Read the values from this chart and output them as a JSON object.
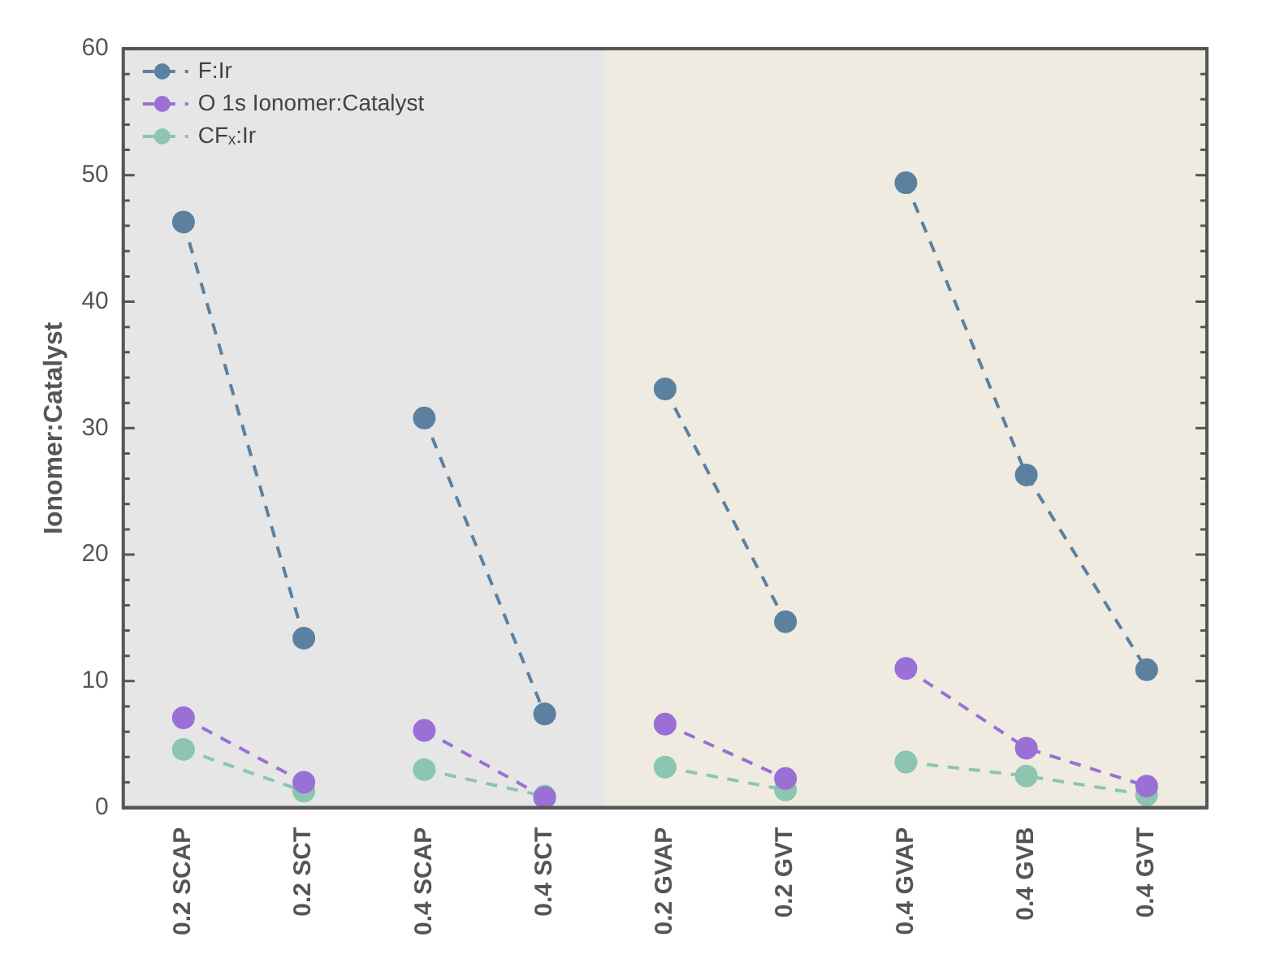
{
  "chart_data": {
    "type": "line",
    "ylabel": "Ionomer:Catalyst",
    "categories": [
      "0.2 SCAP",
      "0.2 SCT",
      "0.4 SCAP",
      "0.4 SCT",
      "0.2 GVAP",
      "0.2 GVT",
      "0.4 GVAP",
      "0.4 GVB",
      "0.4 GVT"
    ],
    "series": [
      {
        "name": "F:Ir",
        "color": "#5b80a0",
        "values": [
          46.3,
          13.4,
          null,
          null,
          null,
          null,
          null,
          null,
          null
        ]
      },
      {
        "name": "O 1s Ionomer:Catalyst",
        "color": "#9a6fd6",
        "values": [
          7.1,
          2.0,
          null,
          null,
          null,
          null,
          null,
          null,
          null
        ]
      },
      {
        "name": "CFₓ:Ir",
        "color": "#8cc5b0",
        "values": [
          4.6,
          1.3,
          null,
          null,
          null,
          null,
          null,
          null,
          null
        ]
      },
      {
        "color": "#5b80a0",
        "values": [
          null,
          null,
          30.8,
          7.4,
          null,
          null,
          null,
          null,
          null
        ]
      },
      {
        "color": "#9a6fd6",
        "values": [
          null,
          null,
          6.1,
          0.8,
          null,
          null,
          null,
          null,
          null
        ]
      },
      {
        "color": "#8cc5b0",
        "values": [
          null,
          null,
          3.0,
          0.9,
          null,
          null,
          null,
          null,
          null
        ]
      },
      {
        "color": "#5b80a0",
        "values": [
          null,
          null,
          null,
          null,
          33.1,
          14.7,
          null,
          null,
          null
        ]
      },
      {
        "color": "#9a6fd6",
        "values": [
          null,
          null,
          null,
          null,
          6.6,
          2.3,
          null,
          null,
          null
        ]
      },
      {
        "color": "#8cc5b0",
        "values": [
          null,
          null,
          null,
          null,
          3.2,
          1.4,
          null,
          null,
          null
        ]
      },
      {
        "color": "#5b80a0",
        "values": [
          null,
          null,
          null,
          null,
          null,
          null,
          49.4,
          26.3,
          10.9
        ]
      },
      {
        "color": "#9a6fd6",
        "values": [
          null,
          null,
          null,
          null,
          null,
          null,
          11.0,
          4.7,
          1.7
        ]
      },
      {
        "color": "#8cc5b0",
        "values": [
          null,
          null,
          null,
          null,
          null,
          null,
          3.6,
          2.5,
          1.0
        ]
      }
    ],
    "bands": [
      {
        "axis": "x",
        "from": "0.2 SCAP",
        "to": "0.4 SCT",
        "color": "#e6e6e6"
      },
      {
        "axis": "x",
        "from": "0.2 GVAP",
        "to": "0.4 GVT",
        "color": "#efebe0"
      }
    ],
    "ylim": [
      0,
      60
    ],
    "yticks": [
      0,
      10,
      20,
      30,
      40,
      50,
      60
    ],
    "grid": false,
    "legend": "top left",
    "marker": "circle",
    "line_style": "dashed"
  }
}
